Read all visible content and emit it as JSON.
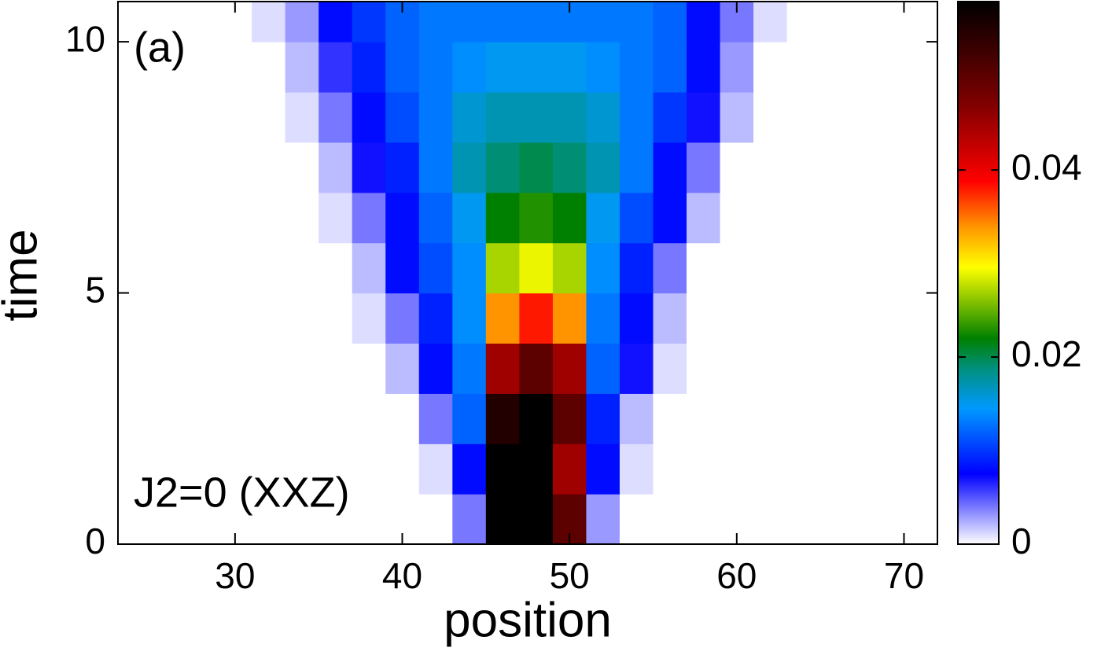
{
  "chart_data": {
    "type": "heatmap",
    "xlabel": "position",
    "ylabel": "time",
    "annotations": [
      "(a)",
      "J2=0 (XXZ)"
    ],
    "x": [
      24,
      26,
      28,
      30,
      32,
      34,
      36,
      38,
      40,
      42,
      44,
      46,
      48,
      50,
      52,
      54,
      56,
      58,
      60,
      62,
      64,
      66,
      68,
      70
    ],
    "y": [
      0.5,
      1.5,
      2.5,
      3.5,
      4.5,
      5.5,
      6.5,
      7.5,
      8.5,
      9.5,
      10.5
    ],
    "values": [
      [
        0,
        0,
        0,
        0,
        0,
        0,
        0,
        0,
        0,
        0,
        0.004,
        0.058,
        0.058,
        0.05,
        0.003,
        0,
        0,
        0,
        0,
        0,
        0,
        0,
        0,
        0
      ],
      [
        0,
        0,
        0,
        0,
        0,
        0,
        0,
        0,
        0,
        0.001,
        0.008,
        0.058,
        0.058,
        0.045,
        0.008,
        0.001,
        0,
        0,
        0,
        0,
        0,
        0,
        0,
        0
      ],
      [
        0,
        0,
        0,
        0,
        0,
        0,
        0,
        0,
        0,
        0.004,
        0.012,
        0.055,
        0.058,
        0.05,
        0.009,
        0.002,
        0,
        0,
        0,
        0,
        0,
        0,
        0,
        0
      ],
      [
        0,
        0,
        0,
        0,
        0,
        0,
        0,
        0,
        0.002,
        0.008,
        0.013,
        0.045,
        0.05,
        0.045,
        0.012,
        0.007,
        0.001,
        0,
        0,
        0,
        0,
        0,
        0,
        0
      ],
      [
        0,
        0,
        0,
        0,
        0,
        0,
        0,
        0.001,
        0.004,
        0.009,
        0.014,
        0.034,
        0.038,
        0.034,
        0.013,
        0.008,
        0.002,
        0,
        0,
        0,
        0,
        0,
        0,
        0
      ],
      [
        0,
        0,
        0,
        0,
        0,
        0,
        0,
        0.002,
        0.008,
        0.011,
        0.014,
        0.027,
        0.029,
        0.027,
        0.014,
        0.009,
        0.004,
        0,
        0,
        0,
        0,
        0,
        0,
        0
      ],
      [
        0,
        0,
        0,
        0,
        0,
        0,
        0.001,
        0.004,
        0.008,
        0.012,
        0.015,
        0.022,
        0.023,
        0.022,
        0.015,
        0.011,
        0.008,
        0.002,
        0,
        0,
        0,
        0,
        0,
        0
      ],
      [
        0,
        0,
        0,
        0,
        0,
        0,
        0.002,
        0.007,
        0.009,
        0.013,
        0.017,
        0.019,
        0.02,
        0.019,
        0.017,
        0.013,
        0.008,
        0.004,
        0,
        0,
        0,
        0,
        0,
        0
      ],
      [
        0,
        0,
        0,
        0,
        0,
        0.001,
        0.004,
        0.008,
        0.011,
        0.013,
        0.016,
        0.017,
        0.017,
        0.017,
        0.016,
        0.013,
        0.01,
        0.007,
        0.002,
        0,
        0,
        0,
        0,
        0
      ],
      [
        0,
        0,
        0,
        0,
        0,
        0.002,
        0.006,
        0.009,
        0.012,
        0.013,
        0.014,
        0.015,
        0.015,
        0.015,
        0.014,
        0.013,
        0.012,
        0.008,
        0.003,
        0,
        0,
        0,
        0,
        0
      ],
      [
        0,
        0,
        0,
        0,
        0.001,
        0.003,
        0.008,
        0.01,
        0.012,
        0.013,
        0.013,
        0.013,
        0.013,
        0.013,
        0.013,
        0.013,
        0.012,
        0.008,
        0.004,
        0.001,
        0,
        0,
        0,
        0
      ]
    ],
    "xlim": [
      23,
      72
    ],
    "ylim": [
      0,
      10.8
    ],
    "xticks": [
      30,
      40,
      50,
      60,
      70
    ],
    "yticks": [
      0,
      5,
      10
    ],
    "colorbar": {
      "lim": [
        0,
        0.058
      ],
      "ticks": [
        0,
        0.02,
        0.04
      ]
    },
    "colormap": [
      {
        "at": 0,
        "color": "#ffffff"
      },
      {
        "at": 0.0075,
        "color": "#0000ff"
      },
      {
        "at": 0.0145,
        "color": "#0099ff"
      },
      {
        "at": 0.0187,
        "color": "#009080"
      },
      {
        "at": 0.022,
        "color": "#008000"
      },
      {
        "at": 0.0296,
        "color": "#ffff00"
      },
      {
        "at": 0.0338,
        "color": "#ff9900"
      },
      {
        "at": 0.0388,
        "color": "#ff0000"
      },
      {
        "at": 0.047,
        "color": "#800000"
      },
      {
        "at": 0.058,
        "color": "#000000"
      }
    ]
  }
}
